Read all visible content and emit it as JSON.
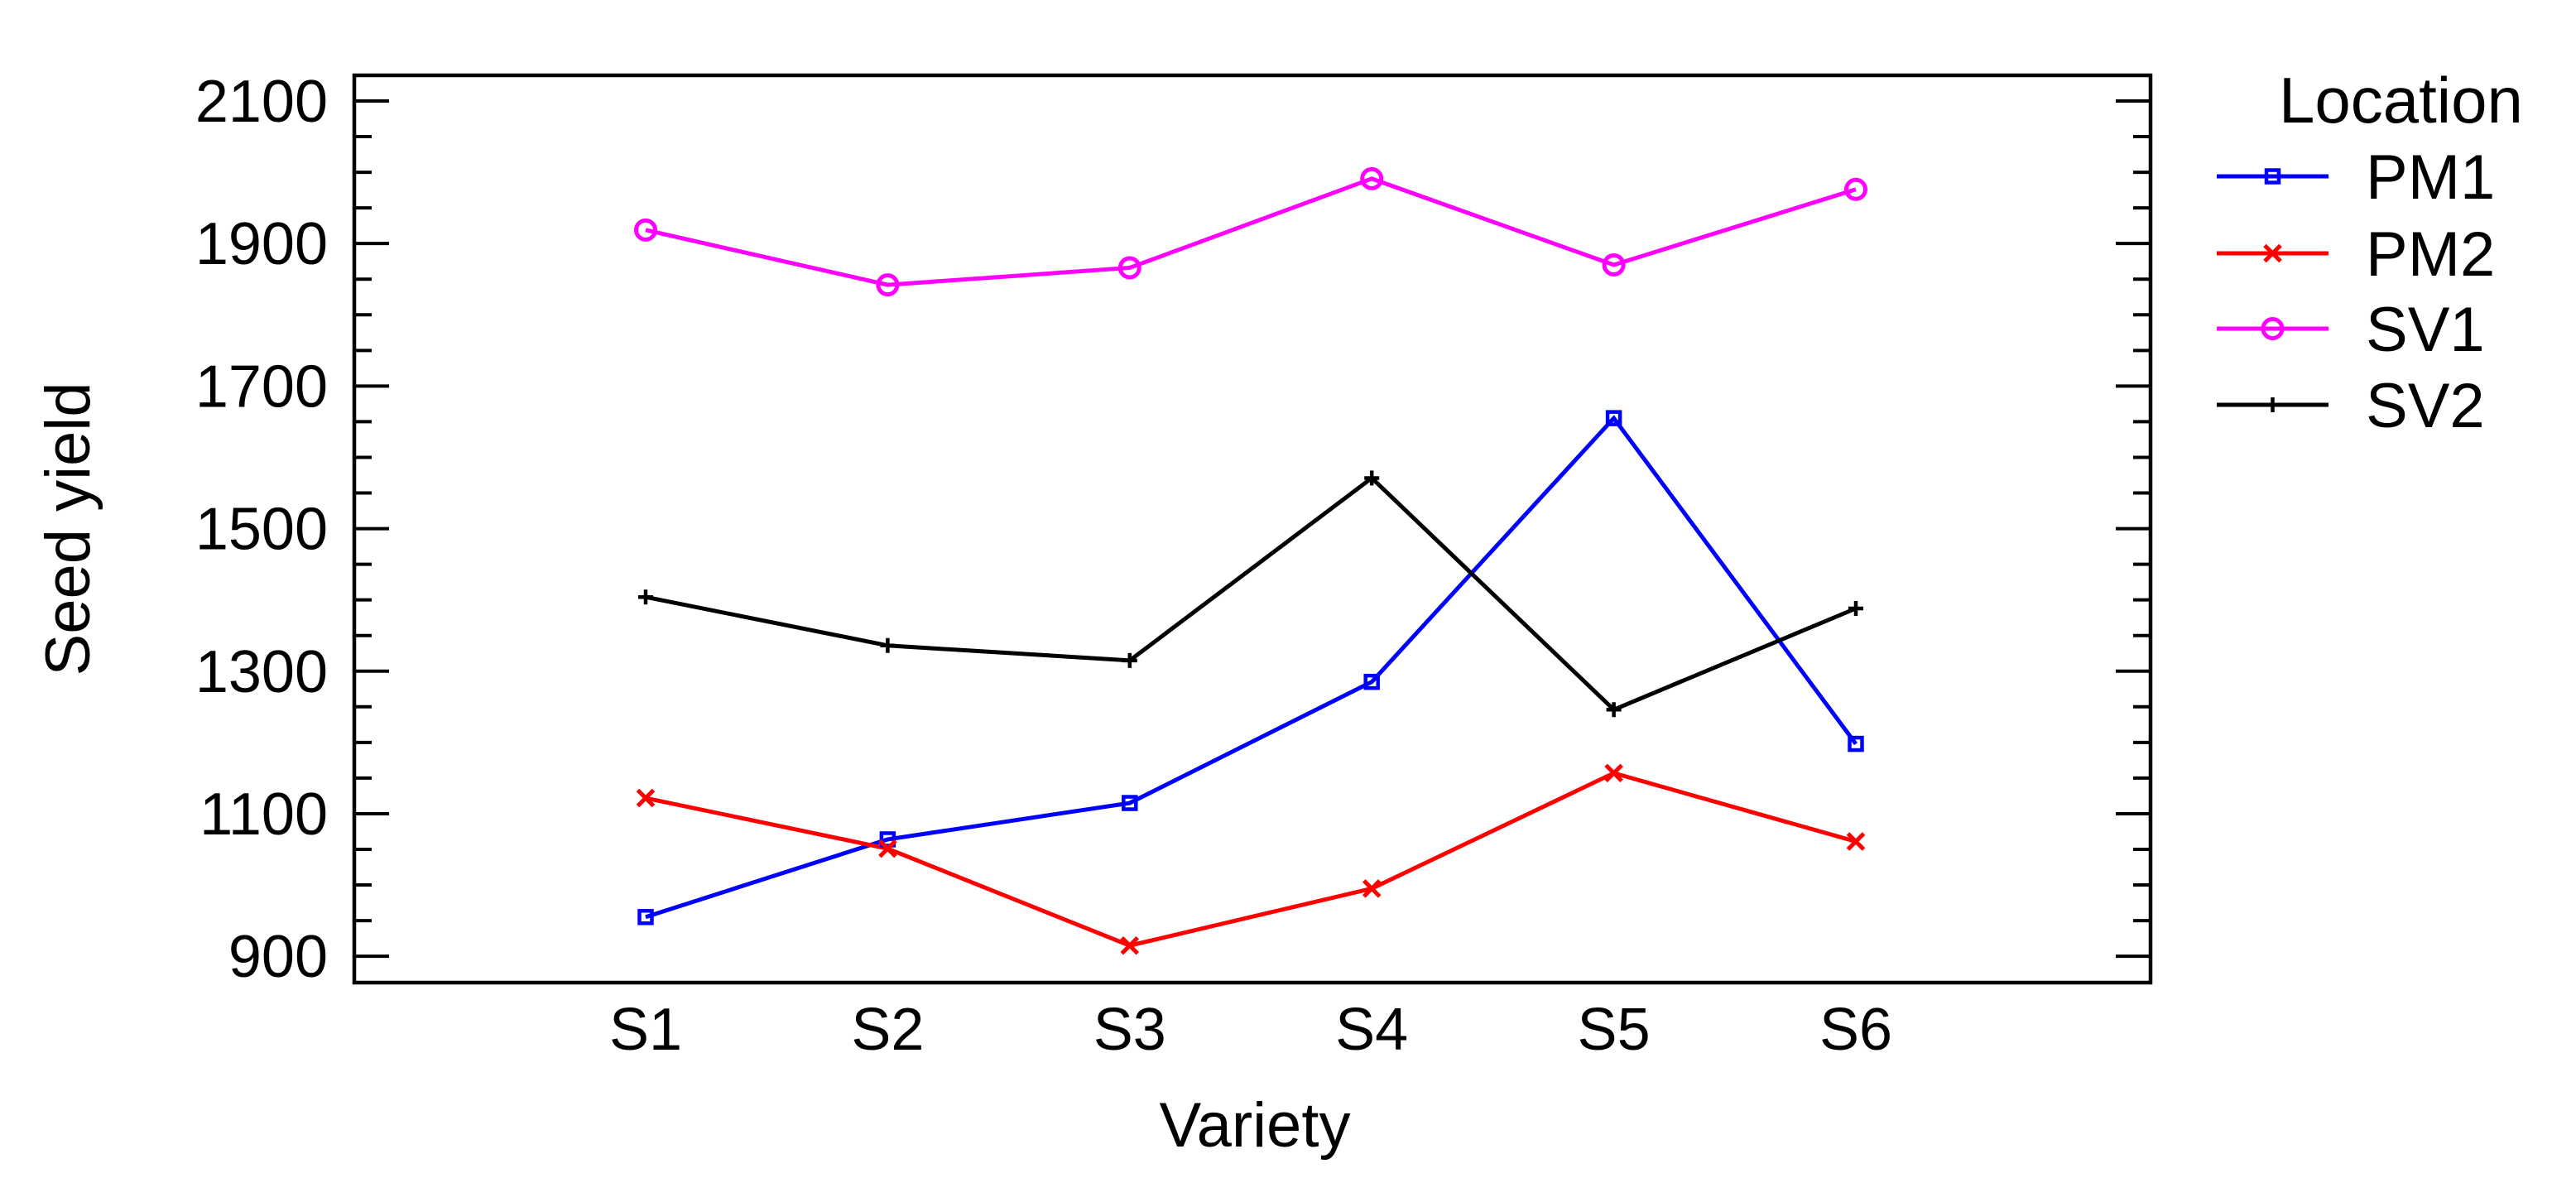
{
  "chart_data": {
    "type": "line",
    "title": "",
    "xlabel": "Variety",
    "ylabel": "Seed yield",
    "legend_title": "Location",
    "legend_position": "right-top",
    "grid": false,
    "background": "#ffffff",
    "categories": [
      "S1",
      "S2",
      "S3",
      "S4",
      "S5",
      "S6"
    ],
    "series": [
      {
        "name": "PM1",
        "color": "#0000ff",
        "marker": "square",
        "values": [
          955,
          1064,
          1115,
          1285,
          1655,
          1198
        ]
      },
      {
        "name": "PM2",
        "color": "#ff0000",
        "marker": "x",
        "values": [
          1122,
          1051,
          915,
          995,
          1157,
          1061
        ]
      },
      {
        "name": "SV1",
        "color": "#ff00ff",
        "marker": "circle",
        "values": [
          1919,
          1842,
          1866,
          1991,
          1870,
          1976
        ]
      },
      {
        "name": "SV2",
        "color": "#000000",
        "marker": "plus",
        "values": [
          1404,
          1336,
          1315,
          1571,
          1246,
          1388
        ]
      }
    ],
    "y_axis": {
      "min": 900,
      "max": 2100,
      "major_step": 200,
      "minor_step": 50,
      "tick_labels": [
        "900",
        "1100",
        "1300",
        "1500",
        "1700",
        "1900",
        "2100"
      ],
      "frame_value_min": 863,
      "frame_value_max": 2136
    },
    "x_axis": {
      "tick_labels": [
        "S1",
        "S2",
        "S3",
        "S4",
        "S5",
        "S6"
      ]
    }
  }
}
